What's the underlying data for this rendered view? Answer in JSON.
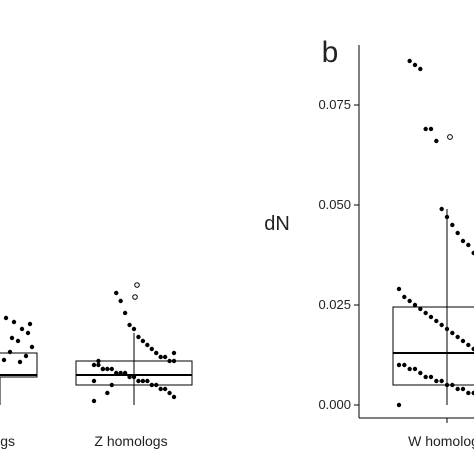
{
  "chart_data": [
    {
      "type": "box",
      "categories": [
        "Z homologs"
      ],
      "partial_left_category_label": "ogs",
      "boxes": [
        {
          "category": "Z homologs",
          "q1": 0.005,
          "median": 0.0075,
          "q3": 0.011,
          "whisker_low": 0.0,
          "whisker_high": 0.018
        }
      ],
      "partial_left_box": {
        "q1": 0.007,
        "median": 0.0075,
        "q3": 0.013,
        "whisker_low": 0.0
      },
      "points": {
        "Z homologs": [
          0.001,
          0.002,
          0.003,
          0.004,
          0.004,
          0.005,
          0.005,
          0.006,
          0.006,
          0.006,
          0.007,
          0.007,
          0.008,
          0.008,
          0.008,
          0.009,
          0.009,
          0.009,
          0.01,
          0.01,
          0.011,
          0.011,
          0.012,
          0.012,
          0.013,
          0.014,
          0.015,
          0.016,
          0.017,
          0.019,
          0.02,
          0.023,
          0.026,
          0.028,
          0.005,
          0.003,
          0.009,
          0.011,
          0.006,
          0.013
        ],
        "Z homologs open": [
          0.027,
          0.03
        ]
      }
    },
    {
      "type": "box",
      "panel_label": "b",
      "ylabel": "dN",
      "categories": [
        "W homologs"
      ],
      "ylim": [
        0,
        0.085
      ],
      "yticks": [
        "0.000",
        "0.025",
        "0.050",
        "0.075"
      ],
      "ytick_values": [
        0,
        0.025,
        0.05,
        0.075
      ],
      "boxes": [
        {
          "category": "W homologs",
          "q1": 0.005,
          "median": 0.013,
          "q3": 0.0245,
          "whisker_low": 0.0,
          "whisker_high": 0.049
        }
      ],
      "points": {
        "W homologs": [
          0.0,
          0.001,
          0.001,
          0.002,
          0.002,
          0.003,
          0.003,
          0.004,
          0.004,
          0.005,
          0.005,
          0.006,
          0.006,
          0.007,
          0.007,
          0.008,
          0.009,
          0.009,
          0.01,
          0.01,
          0.011,
          0.012,
          0.012,
          0.013,
          0.014,
          0.015,
          0.016,
          0.017,
          0.018,
          0.019,
          0.02,
          0.021,
          0.022,
          0.023,
          0.024,
          0.025,
          0.026,
          0.027,
          0.029,
          0.031,
          0.033,
          0.035,
          0.036,
          0.038,
          0.04,
          0.041,
          0.043,
          0.045,
          0.047,
          0.049,
          0.066,
          0.069,
          0.069,
          0.084,
          0.085,
          0.086
        ],
        "W homologs open": [
          0.067
        ]
      }
    }
  ]
}
